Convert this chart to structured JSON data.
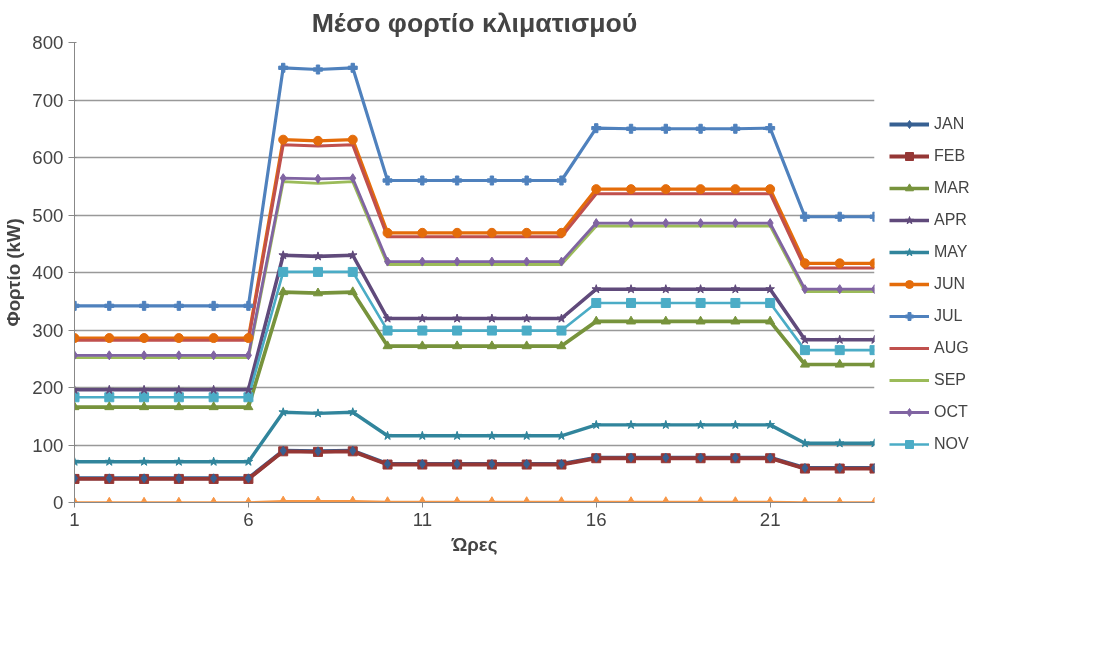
{
  "chart_data": {
    "type": "line",
    "title": "Μέσο φορτίο κλιματισμού",
    "xlabel": "Ώρες",
    "ylabel": "Φορτίο (kW)",
    "x": [
      1,
      2,
      3,
      4,
      5,
      6,
      7,
      8,
      9,
      10,
      11,
      12,
      13,
      14,
      15,
      16,
      17,
      18,
      19,
      20,
      21,
      22,
      23,
      24
    ],
    "xlim": [
      1,
      24
    ],
    "xticks": [
      1,
      6,
      11,
      16,
      21
    ],
    "ylim": [
      0,
      800
    ],
    "yticks": [
      0,
      100,
      200,
      300,
      400,
      500,
      600,
      700,
      800
    ],
    "grid": "y",
    "legend": "right",
    "series": [
      {
        "name": "JAN",
        "color": "#376092",
        "marker": "diamond",
        "values": [
          42,
          42,
          42,
          42,
          42,
          42,
          90,
          89,
          90,
          67,
          67,
          67,
          67,
          67,
          67,
          78,
          78,
          78,
          78,
          78,
          78,
          60,
          60,
          60
        ]
      },
      {
        "name": "FEB",
        "color": "#953735",
        "marker": "square",
        "values": [
          41,
          41,
          41,
          41,
          41,
          41,
          89,
          88,
          89,
          66,
          66,
          66,
          66,
          66,
          66,
          77,
          77,
          77,
          77,
          77,
          77,
          59,
          59,
          59
        ]
      },
      {
        "name": "MAR",
        "color": "#77933c",
        "marker": "triangle",
        "values": [
          166,
          166,
          166,
          166,
          166,
          166,
          366,
          364,
          366,
          272,
          272,
          272,
          272,
          272,
          272,
          315,
          315,
          315,
          315,
          315,
          315,
          240,
          240,
          240
        ]
      },
      {
        "name": "APR",
        "color": "#604a7b",
        "marker": "star",
        "values": [
          196,
          196,
          196,
          196,
          196,
          196,
          430,
          428,
          430,
          320,
          320,
          320,
          320,
          320,
          320,
          371,
          371,
          371,
          371,
          371,
          371,
          283,
          283,
          283
        ]
      },
      {
        "name": "MAY",
        "color": "#31859c",
        "marker": "star",
        "values": [
          71,
          71,
          71,
          71,
          71,
          71,
          157,
          155,
          157,
          116,
          116,
          116,
          116,
          116,
          116,
          135,
          135,
          135,
          135,
          135,
          135,
          103,
          103,
          103
        ]
      },
      {
        "name": "JUN",
        "color": "#e46c0a",
        "marker": "circle",
        "values": [
          286,
          286,
          286,
          286,
          286,
          286,
          631,
          629,
          631,
          469,
          469,
          469,
          469,
          469,
          469,
          545,
          545,
          545,
          545,
          545,
          545,
          416,
          416,
          416
        ]
      },
      {
        "name": "JUL",
        "color": "#4f81bd",
        "marker": "cross",
        "values": [
          342,
          342,
          342,
          342,
          342,
          342,
          756,
          753,
          756,
          560,
          560,
          560,
          560,
          560,
          560,
          651,
          650,
          650,
          650,
          650,
          651,
          497,
          497,
          497
        ]
      },
      {
        "name": "AUG",
        "color": "#c0504d",
        "marker": "none",
        "values": [
          282,
          282,
          282,
          282,
          282,
          282,
          622,
          620,
          622,
          462,
          462,
          462,
          462,
          462,
          462,
          537,
          537,
          537,
          537,
          537,
          537,
          408,
          408,
          408
        ]
      },
      {
        "name": "SEP",
        "color": "#9bbb59",
        "marker": "none",
        "values": [
          252,
          252,
          252,
          252,
          252,
          252,
          558,
          555,
          558,
          414,
          414,
          414,
          414,
          414,
          414,
          481,
          481,
          481,
          481,
          481,
          481,
          367,
          367,
          367
        ]
      },
      {
        "name": "OCT",
        "color": "#8064a2",
        "marker": "diamond",
        "values": [
          256,
          256,
          256,
          256,
          256,
          256,
          564,
          563,
          564,
          419,
          419,
          419,
          419,
          419,
          419,
          486,
          486,
          486,
          486,
          486,
          486,
          371,
          371,
          371
        ]
      },
      {
        "name": "NOV",
        "color": "#4bacc6",
        "marker": "square",
        "values": [
          183,
          183,
          183,
          183,
          183,
          183,
          401,
          401,
          401,
          299,
          299,
          299,
          299,
          299,
          299,
          347,
          347,
          347,
          347,
          347,
          347,
          265,
          265,
          265
        ]
      },
      {
        "color": "#f79646",
        "marker": "triangle",
        "values": [
          0,
          0,
          0,
          0,
          0,
          0,
          2,
          2,
          2,
          1,
          1,
          1,
          1,
          1,
          1,
          1,
          1,
          1,
          1,
          1,
          1,
          0,
          0,
          0
        ]
      }
    ]
  }
}
